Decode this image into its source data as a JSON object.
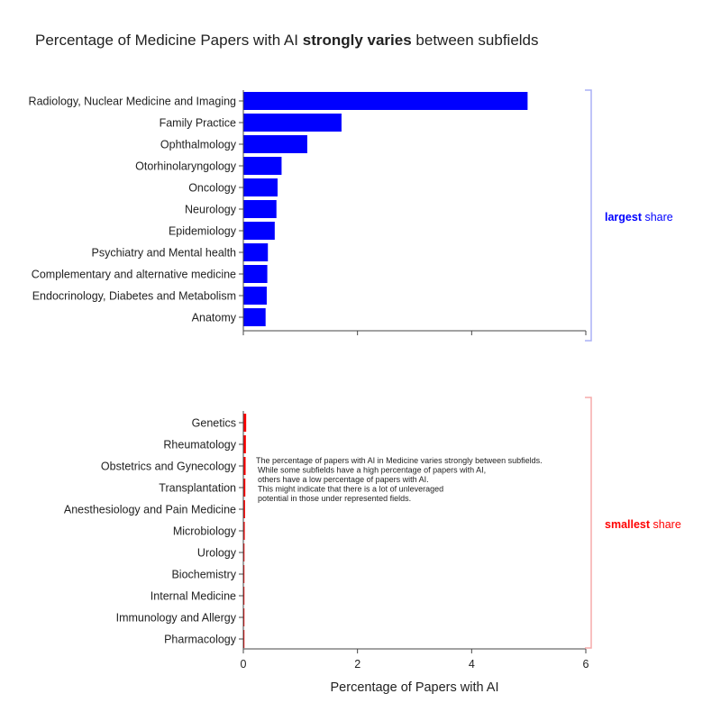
{
  "chart_data": {
    "type": "bar",
    "orientation": "horizontal",
    "title": {
      "prefix": "Percentage of Medicine Papers with AI ",
      "emphasis": "strongly varies",
      "suffix": " between subfields"
    },
    "xlabel": "Percentage of Papers with AI",
    "xlim": [
      0,
      6
    ],
    "xticks": [
      "0",
      "2",
      "4",
      "6"
    ],
    "panels": [
      {
        "name": "largest",
        "color": "#0000ff",
        "bracket_color": "#aab0f5",
        "label_bold": "largest",
        "label_rest": " share",
        "categories": [
          "Radiology, Nuclear Medicine and Imaging",
          "Family Practice",
          "Ophthalmology",
          "Otorhinolaryngology",
          "Oncology",
          "Neurology",
          "Epidemiology",
          "Psychiatry and Mental health",
          "Complementary and alternative medicine",
          "Endocrinology, Diabetes and Metabolism",
          "Anatomy"
        ],
        "values": [
          4.98,
          1.72,
          1.12,
          0.67,
          0.6,
          0.58,
          0.55,
          0.43,
          0.42,
          0.41,
          0.39
        ]
      },
      {
        "name": "smallest",
        "color": "#ff0000",
        "bracket_color": "#f5aaaa",
        "label_bold": "smallest",
        "label_rest": " share",
        "categories": [
          "Genetics",
          "Rheumatology",
          "Obstetrics and Gynecology",
          "Transplantation",
          "Anesthesiology and Pain Medicine",
          "Microbiology",
          "Urology",
          "Biochemistry",
          "Internal Medicine",
          "Immunology and Allergy",
          "Pharmacology"
        ],
        "values": [
          0.05,
          0.045,
          0.04,
          0.035,
          0.03,
          0.025,
          0.02,
          0.018,
          0.015,
          0.012,
          0.01
        ]
      }
    ],
    "annotation": [
      "The percentage of papers with AI in Medicine varies strongly between subfields.",
      "While some subfields have a high percentage of papers with AI,",
      "others have a low percentage of papers with AI.",
      "This might indicate that there is a lot of unleveraged",
      "potential in those under represented fields."
    ]
  }
}
